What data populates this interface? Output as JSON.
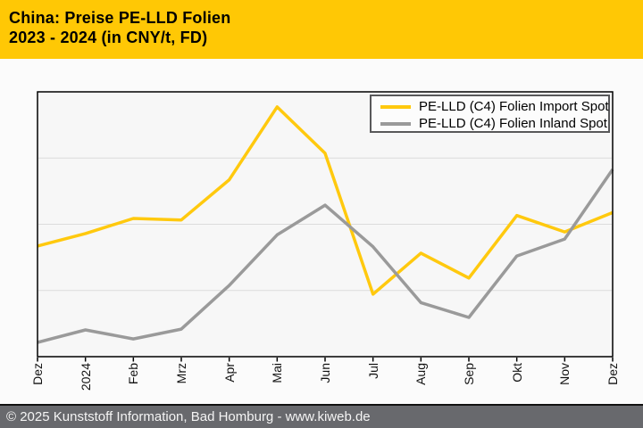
{
  "title": {
    "line1": "China: Preise PE-LLD Folien",
    "line2": "2023 - 2024 (in CNY/t, FD)"
  },
  "footer": {
    "text": "© 2025 Kunststoff Information, Bad Homburg - www.kiweb.de"
  },
  "colors": {
    "header_bg": "#ffc805",
    "footer_bg": "#68696d",
    "footer_text": "#f4f4f4",
    "import_line": "#ffc90e",
    "inland_line": "#9a9a9a",
    "plot_bg": "#f7f7f7",
    "gridline": "#dcdcdc",
    "plot_border": "#000000"
  },
  "chart_data": {
    "type": "line",
    "title": "China: Preise PE-LLD Folien 2023 - 2024 (in CNY/t, FD)",
    "categories": [
      "Dez",
      "2024",
      "Feb",
      "Mrz",
      "Apr",
      "Mai",
      "Jun",
      "Jul",
      "Aug",
      "Sep",
      "Okt",
      "Nov",
      "Dez"
    ],
    "series": [
      {
        "name": "PE-LLD (C4) Folien Import Spot",
        "color": "#ffc90e",
        "values": [
          41.8,
          46.5,
          52.2,
          51.6,
          66.8,
          94.3,
          76.8,
          23.6,
          39.1,
          29.7,
          53.3,
          47.1,
          54.4
        ]
      },
      {
        "name": "PE-LLD (C4) Folien Inland Spot",
        "color": "#9a9a9a",
        "values": [
          5.4,
          10.1,
          6.7,
          10.4,
          26.9,
          46.0,
          57.2,
          41.5,
          20.4,
          14.8,
          38.0,
          44.4,
          70.7
        ]
      }
    ],
    "xlabel": "",
    "ylabel": "",
    "y_axis_tick_labels": "none (y-axis is unlabeled in the source chart)",
    "value_scale": "percent of plot height, 0 = plot bottom, 100 = plot top",
    "ylim": [
      0,
      100
    ],
    "grid": "3 horizontal gridlines at 25/50/75 percent",
    "legend_position": "top-right inside plot"
  }
}
